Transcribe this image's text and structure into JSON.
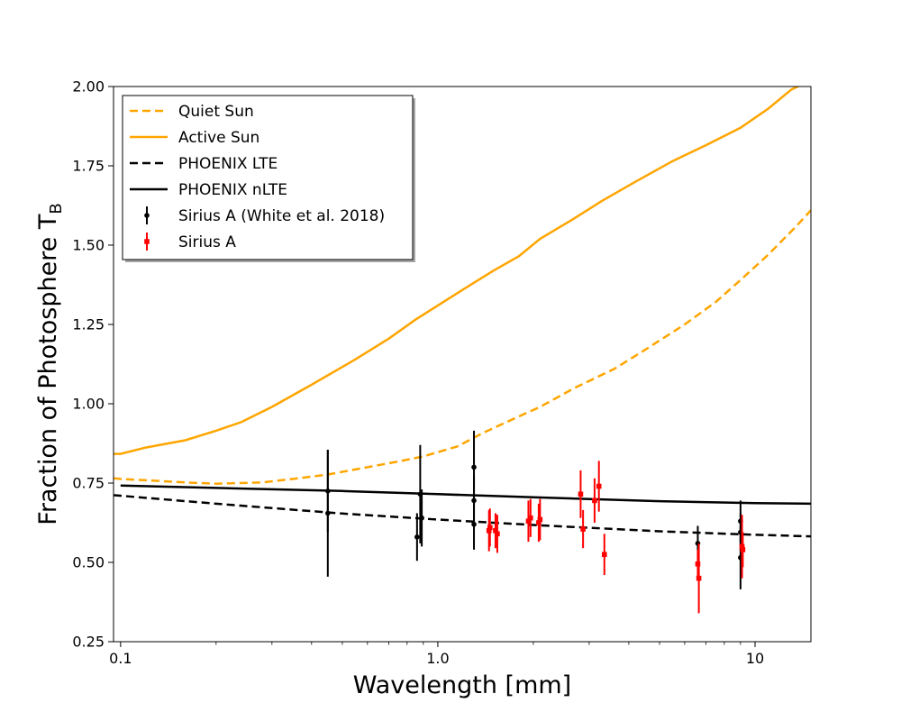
{
  "chart_data": {
    "type": "scatter",
    "title": "",
    "xlabel": "Wavelength [mm]",
    "ylabel": "Fraction of Photosphere T",
    "ylabel_sub": "B",
    "xscale": "log",
    "xlim": [
      0.095,
      15
    ],
    "ylim": [
      0.25,
      2.0
    ],
    "xticks": [
      {
        "value": 0.1,
        "label": "0.1"
      },
      {
        "value": 1.0,
        "label": "1.0"
      },
      {
        "value": 10,
        "label": "10"
      }
    ],
    "yticks": [
      {
        "value": 0.25,
        "label": "0.25"
      },
      {
        "value": 0.5,
        "label": "0.50"
      },
      {
        "value": 0.75,
        "label": "0.75"
      },
      {
        "value": 1.0,
        "label": "1.00"
      },
      {
        "value": 1.25,
        "label": "1.25"
      },
      {
        "value": 1.5,
        "label": "1.50"
      },
      {
        "value": 1.75,
        "label": "1.75"
      },
      {
        "value": 2.0,
        "label": "2.00"
      }
    ],
    "grid": false,
    "legend_position": "top-left",
    "lines": [
      {
        "name": "Quiet Sun",
        "color": "#FFA500",
        "style": "dashed",
        "x": [
          0.095,
          0.1,
          0.13,
          0.16,
          0.2,
          0.28,
          0.35,
          0.45,
          0.6,
          0.75,
          0.9,
          1.15,
          1.4,
          1.8,
          2.1,
          2.7,
          3.6,
          4.5,
          6.0,
          7.5,
          9.0,
          11.0,
          13.5,
          15.0
        ],
        "y": [
          0.765,
          0.763,
          0.757,
          0.752,
          0.748,
          0.752,
          0.763,
          0.777,
          0.8,
          0.818,
          0.834,
          0.865,
          0.91,
          0.96,
          0.99,
          1.05,
          1.11,
          1.17,
          1.25,
          1.32,
          1.39,
          1.47,
          1.56,
          1.61
        ]
      },
      {
        "name": "Active Sun",
        "color": "#FFA500",
        "style": "solid",
        "x": [
          0.095,
          0.1,
          0.12,
          0.16,
          0.2,
          0.24,
          0.3,
          0.4,
          0.55,
          0.7,
          0.85,
          1.2,
          1.5,
          1.8,
          2.1,
          2.7,
          3.3,
          4.2,
          5.5,
          7.0,
          9.0,
          11.0,
          13.0,
          15.0
        ],
        "y": [
          0.842,
          0.842,
          0.862,
          0.885,
          0.915,
          0.942,
          0.99,
          1.06,
          1.14,
          1.205,
          1.265,
          1.36,
          1.42,
          1.465,
          1.52,
          1.585,
          1.64,
          1.7,
          1.765,
          1.815,
          1.87,
          1.93,
          1.99,
          2.02
        ]
      },
      {
        "name": "PHOENIX  LTE",
        "color": "#000000",
        "style": "dashed",
        "x": [
          0.095,
          0.2,
          0.5,
          1.0,
          2.0,
          5.0,
          10.0,
          15.0
        ],
        "y": [
          0.712,
          0.685,
          0.654,
          0.635,
          0.618,
          0.598,
          0.587,
          0.582
        ]
      },
      {
        "name": "PHOENIX  nLTE",
        "color": "#000000",
        "style": "solid",
        "x": [
          0.1,
          0.5,
          1.0,
          2.0,
          5.0,
          10.0,
          15.0
        ],
        "y": [
          0.742,
          0.725,
          0.715,
          0.705,
          0.693,
          0.687,
          0.685
        ]
      }
    ],
    "errorbar_series": [
      {
        "name": "Sirius A (White et al. 2018)",
        "color": "#000000",
        "marker": "circle",
        "points": [
          {
            "x": 0.45,
            "y": 0.655,
            "err": 0.2
          },
          {
            "x": 0.45,
            "y": 0.725,
            "err": 0.13
          },
          {
            "x": 0.86,
            "y": 0.58,
            "err": 0.075
          },
          {
            "x": 0.88,
            "y": 0.715,
            "err": 0.155
          },
          {
            "x": 0.89,
            "y": 0.64,
            "err": 0.09
          },
          {
            "x": 1.3,
            "y": 0.8,
            "err": 0.115
          },
          {
            "x": 1.3,
            "y": 0.695,
            "err": 0.08
          },
          {
            "x": 1.3,
            "y": 0.62,
            "err": 0.08
          },
          {
            "x": 6.6,
            "y": 0.56,
            "err": 0.055
          },
          {
            "x": 9.0,
            "y": 0.63,
            "err": 0.065
          },
          {
            "x": 9.0,
            "y": 0.595,
            "err": 0.06
          },
          {
            "x": 9.0,
            "y": 0.515,
            "err": 0.1
          }
        ]
      },
      {
        "name": "Sirius A",
        "color": "#FF0000",
        "marker": "square",
        "points": [
          {
            "x": 1.45,
            "y": 0.6,
            "err": 0.065
          },
          {
            "x": 1.46,
            "y": 0.61,
            "err": 0.06
          },
          {
            "x": 1.52,
            "y": 0.6,
            "err": 0.055
          },
          {
            "x": 1.54,
            "y": 0.59,
            "err": 0.06
          },
          {
            "x": 1.93,
            "y": 0.63,
            "err": 0.065
          },
          {
            "x": 1.96,
            "y": 0.64,
            "err": 0.06
          },
          {
            "x": 2.08,
            "y": 0.625,
            "err": 0.06
          },
          {
            "x": 2.1,
            "y": 0.635,
            "err": 0.065
          },
          {
            "x": 2.82,
            "y": 0.715,
            "err": 0.075
          },
          {
            "x": 2.87,
            "y": 0.605,
            "err": 0.06
          },
          {
            "x": 3.12,
            "y": 0.695,
            "err": 0.07
          },
          {
            "x": 3.22,
            "y": 0.74,
            "err": 0.08
          },
          {
            "x": 3.35,
            "y": 0.525,
            "err": 0.065
          },
          {
            "x": 6.6,
            "y": 0.495,
            "err": 0.045
          },
          {
            "x": 6.65,
            "y": 0.45,
            "err": 0.11
          },
          {
            "x": 9.1,
            "y": 0.55,
            "err": 0.1
          },
          {
            "x": 9.15,
            "y": 0.54,
            "err": 0.055
          }
        ]
      }
    ]
  }
}
